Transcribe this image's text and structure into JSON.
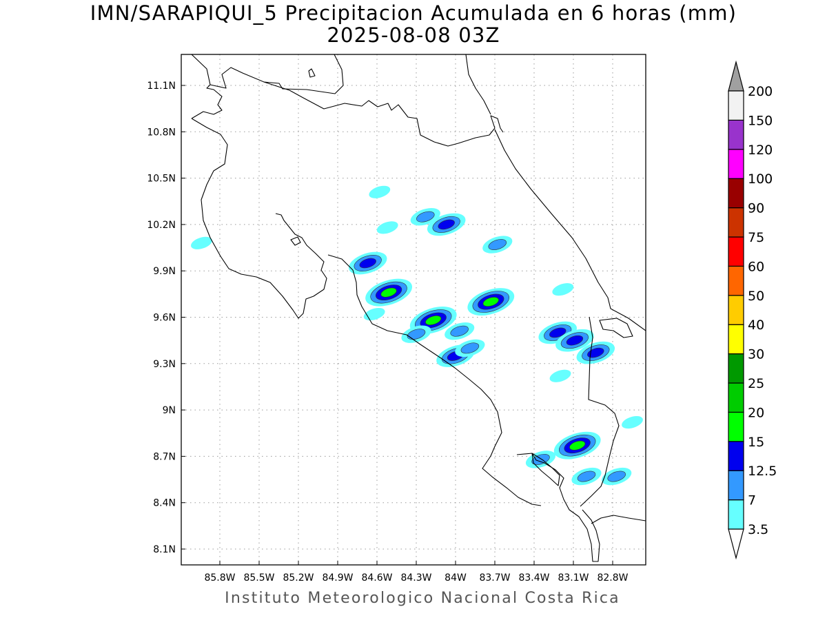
{
  "title": {
    "line1": "IMN/SARAPIQUI_5 Precipitacion Acumulada en 6 horas (mm)",
    "line2": "2025-08-08 03Z"
  },
  "footer": "Instituto Meteorologico Nacional Costa Rica",
  "map": {
    "lon_ticks": [
      {
        "value": -85.8,
        "label": "85.8W"
      },
      {
        "value": -85.5,
        "label": "85.5W"
      },
      {
        "value": -85.2,
        "label": "85.2W"
      },
      {
        "value": -84.9,
        "label": "84.9W"
      },
      {
        "value": -84.6,
        "label": "84.6W"
      },
      {
        "value": -84.3,
        "label": "84.3W"
      },
      {
        "value": -84.0,
        "label": "84W"
      },
      {
        "value": -83.7,
        "label": "83.7W"
      },
      {
        "value": -83.4,
        "label": "83.4W"
      },
      {
        "value": -83.1,
        "label": "83.1W"
      },
      {
        "value": -82.8,
        "label": "82.8W"
      }
    ],
    "lat_ticks": [
      {
        "value": 11.1,
        "label": "11.1N"
      },
      {
        "value": 10.8,
        "label": "10.8N"
      },
      {
        "value": 10.5,
        "label": "10.5N"
      },
      {
        "value": 10.2,
        "label": "10.2N"
      },
      {
        "value": 9.9,
        "label": "9.9N"
      },
      {
        "value": 9.6,
        "label": "9.6N"
      },
      {
        "value": 9.3,
        "label": "9.3N"
      },
      {
        "value": 9.0,
        "label": "9N"
      },
      {
        "value": 8.7,
        "label": "8.7N"
      },
      {
        "value": 8.4,
        "label": "8.4N"
      },
      {
        "value": 8.1,
        "label": "8.1N"
      }
    ],
    "grid": "dotted",
    "coastline_color": "#000000"
  },
  "colorbar": {
    "orientation": "vertical",
    "extend": "both",
    "min_extension_color": "#ffffff",
    "max_extension_color": "#a0a0a0",
    "levels": [
      {
        "label": "3.5",
        "color": "#66ffff"
      },
      {
        "label": "7",
        "color": "#3399ff"
      },
      {
        "label": "12.5",
        "color": "#0000ee"
      },
      {
        "label": "15",
        "color": "#00ff00"
      },
      {
        "label": "20",
        "color": "#00cc00"
      },
      {
        "label": "25",
        "color": "#009900"
      },
      {
        "label": "30",
        "color": "#ffff00"
      },
      {
        "label": "40",
        "color": "#ffcc00"
      },
      {
        "label": "50",
        "color": "#ff6600"
      },
      {
        "label": "60",
        "color": "#ff0000"
      },
      {
        "label": "75",
        "color": "#cc3300"
      },
      {
        "label": "90",
        "color": "#990000"
      },
      {
        "label": "100",
        "color": "#ff00ff"
      },
      {
        "label": "120",
        "color": "#9933cc"
      },
      {
        "label": "150",
        "color": "#f2f2f2"
      },
      {
        "label": "200",
        "color": null
      }
    ]
  },
  "precip_cells": [
    {
      "lon": -84.67,
      "lat": 9.95,
      "max_mm": 12.5
    },
    {
      "lon": -84.51,
      "lat": 9.76,
      "max_mm": 15
    },
    {
      "lon": -84.17,
      "lat": 9.58,
      "max_mm": 15
    },
    {
      "lon": -83.73,
      "lat": 9.7,
      "max_mm": 15
    },
    {
      "lon": -84.0,
      "lat": 9.35,
      "max_mm": 12.5
    },
    {
      "lon": -84.07,
      "lat": 10.2,
      "max_mm": 12.5
    },
    {
      "lon": -84.23,
      "lat": 10.25,
      "max_mm": 7
    },
    {
      "lon": -83.22,
      "lat": 9.5,
      "max_mm": 12.5
    },
    {
      "lon": -83.09,
      "lat": 9.45,
      "max_mm": 12.5
    },
    {
      "lon": -82.93,
      "lat": 9.37,
      "max_mm": 12.5
    },
    {
      "lon": -83.07,
      "lat": 8.77,
      "max_mm": 15
    },
    {
      "lon": -83.35,
      "lat": 8.68,
      "max_mm": 7
    },
    {
      "lon": -82.77,
      "lat": 8.57,
      "max_mm": 7
    },
    {
      "lon": -83.0,
      "lat": 8.57,
      "max_mm": 7
    },
    {
      "lon": -85.94,
      "lat": 10.08,
      "max_mm": 3.5
    },
    {
      "lon": -83.68,
      "lat": 10.07,
      "max_mm": 7
    },
    {
      "lon": -84.3,
      "lat": 9.49,
      "max_mm": 7
    },
    {
      "lon": -83.97,
      "lat": 9.51,
      "max_mm": 7
    },
    {
      "lon": -83.18,
      "lat": 9.78,
      "max_mm": 3.5
    },
    {
      "lon": -83.2,
      "lat": 9.22,
      "max_mm": 3.5
    },
    {
      "lon": -84.58,
      "lat": 10.41,
      "max_mm": 3.5
    },
    {
      "lon": -84.52,
      "lat": 10.18,
      "max_mm": 3.5
    },
    {
      "lon": -84.62,
      "lat": 9.62,
      "max_mm": 3.5
    },
    {
      "lon": -83.89,
      "lat": 9.4,
      "max_mm": 7
    },
    {
      "lon": -82.65,
      "lat": 8.92,
      "max_mm": 3.5
    }
  ]
}
